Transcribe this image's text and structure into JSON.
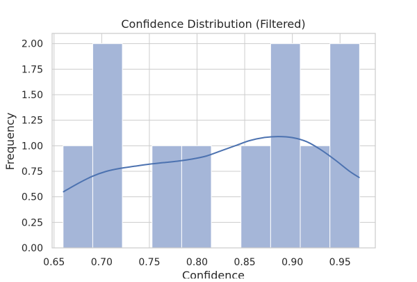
{
  "chart_data": {
    "type": "bar",
    "title": "Confidence Distribution (Filtered)",
    "xlabel": "Confidence",
    "ylabel": "Frequency",
    "xlim": [
      0.648,
      0.987
    ],
    "ylim": [
      0,
      2.1
    ],
    "x_ticks": [
      0.65,
      0.7,
      0.75,
      0.8,
      0.85,
      0.9,
      0.95
    ],
    "x_tick_labels": [
      "0.65",
      "0.70",
      "0.75",
      "0.80",
      "0.85",
      "0.90",
      "0.95"
    ],
    "y_ticks": [
      0,
      0.25,
      0.5,
      0.75,
      1.0,
      1.25,
      1.5,
      1.75,
      2.0
    ],
    "y_tick_labels": [
      "0.00",
      "0.25",
      "0.50",
      "0.75",
      "1.00",
      "1.25",
      "1.50",
      "1.75",
      "2.00"
    ],
    "bins": [
      {
        "x0": 0.6595,
        "x1": 0.6906,
        "count": 1
      },
      {
        "x0": 0.6906,
        "x1": 0.7217,
        "count": 2
      },
      {
        "x0": 0.7217,
        "x1": 0.7528,
        "count": 0
      },
      {
        "x0": 0.7528,
        "x1": 0.7839,
        "count": 1
      },
      {
        "x0": 0.7839,
        "x1": 0.815,
        "count": 1
      },
      {
        "x0": 0.815,
        "x1": 0.8461,
        "count": 0
      },
      {
        "x0": 0.8461,
        "x1": 0.8772,
        "count": 1
      },
      {
        "x0": 0.8772,
        "x1": 0.9083,
        "count": 2
      },
      {
        "x0": 0.9083,
        "x1": 0.9394,
        "count": 1
      },
      {
        "x0": 0.9394,
        "x1": 0.9705,
        "count": 2
      }
    ],
    "kde": {
      "x": [
        0.66,
        0.675,
        0.69,
        0.705,
        0.72,
        0.735,
        0.75,
        0.765,
        0.78,
        0.795,
        0.81,
        0.825,
        0.84,
        0.855,
        0.87,
        0.885,
        0.9,
        0.915,
        0.93,
        0.945,
        0.96,
        0.97
      ],
      "y": [
        0.55,
        0.63,
        0.7,
        0.75,
        0.78,
        0.8,
        0.82,
        0.835,
        0.85,
        0.87,
        0.9,
        0.95,
        1.0,
        1.05,
        1.08,
        1.09,
        1.08,
        1.04,
        0.96,
        0.86,
        0.75,
        0.69
      ]
    },
    "grid": true,
    "colors": {
      "bar_fill": "#a5b6d8",
      "bar_stroke": "#ffffff",
      "kde_line": "#4c72b0",
      "grid": "#cccccc",
      "spine": "#cccccc",
      "background": "#ffffff"
    }
  }
}
